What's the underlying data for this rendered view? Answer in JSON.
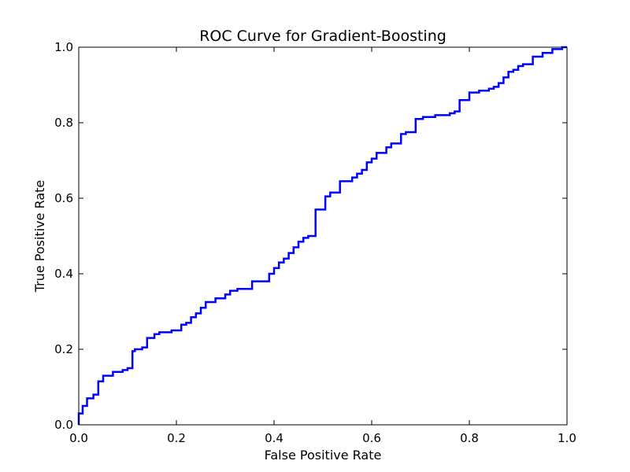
{
  "chart_data": {
    "type": "line",
    "title": "ROC Curve for Gradient-Boosting",
    "xlabel": "False Positive Rate",
    "ylabel": "True Positive Rate",
    "xlim": [
      0.0,
      1.0
    ],
    "ylim": [
      0.0,
      1.0
    ],
    "xticks": [
      "0.0",
      "0.2",
      "0.4",
      "0.6",
      "0.8",
      "1.0"
    ],
    "yticks": [
      "0.0",
      "0.2",
      "0.4",
      "0.6",
      "0.8",
      "1.0"
    ],
    "grid": false,
    "series_color": "#0000ff",
    "series": [
      {
        "x": [
          0.0,
          0.0,
          0.008,
          0.008,
          0.017,
          0.017,
          0.03,
          0.03,
          0.04,
          0.04,
          0.05,
          0.05,
          0.07,
          0.07,
          0.09,
          0.09,
          0.1,
          0.1,
          0.11,
          0.11,
          0.115,
          0.115,
          0.13,
          0.13,
          0.14,
          0.14,
          0.155,
          0.155,
          0.165,
          0.165,
          0.19,
          0.19,
          0.21,
          0.21,
          0.22,
          0.22,
          0.23,
          0.23,
          0.24,
          0.24,
          0.25,
          0.25,
          0.26,
          0.26,
          0.28,
          0.28,
          0.3,
          0.3,
          0.31,
          0.31,
          0.325,
          0.325,
          0.355,
          0.355,
          0.39,
          0.39,
          0.4,
          0.4,
          0.41,
          0.41,
          0.42,
          0.42,
          0.43,
          0.43,
          0.44,
          0.44,
          0.45,
          0.45,
          0.46,
          0.46,
          0.47,
          0.47,
          0.485,
          0.485,
          0.505,
          0.505,
          0.515,
          0.515,
          0.535,
          0.535,
          0.56,
          0.56,
          0.57,
          0.57,
          0.58,
          0.58,
          0.59,
          0.59,
          0.6,
          0.6,
          0.61,
          0.61,
          0.63,
          0.63,
          0.64,
          0.64,
          0.66,
          0.66,
          0.67,
          0.67,
          0.69,
          0.69,
          0.705,
          0.705,
          0.73,
          0.73,
          0.76,
          0.76,
          0.77,
          0.77,
          0.78,
          0.78,
          0.8,
          0.8,
          0.82,
          0.82,
          0.84,
          0.84,
          0.85,
          0.85,
          0.86,
          0.86,
          0.87,
          0.87,
          0.88,
          0.88,
          0.89,
          0.89,
          0.9,
          0.9,
          0.91,
          0.91,
          0.93,
          0.93,
          0.95,
          0.95,
          0.97,
          0.97,
          0.99,
          0.99,
          1.0
        ],
        "y": [
          0.0,
          0.03,
          0.03,
          0.05,
          0.05,
          0.07,
          0.07,
          0.08,
          0.08,
          0.115,
          0.115,
          0.13,
          0.13,
          0.14,
          0.14,
          0.145,
          0.145,
          0.15,
          0.15,
          0.195,
          0.195,
          0.2,
          0.2,
          0.205,
          0.205,
          0.23,
          0.23,
          0.24,
          0.24,
          0.245,
          0.245,
          0.25,
          0.25,
          0.265,
          0.265,
          0.27,
          0.27,
          0.285,
          0.285,
          0.295,
          0.295,
          0.31,
          0.31,
          0.325,
          0.325,
          0.335,
          0.335,
          0.345,
          0.345,
          0.355,
          0.355,
          0.36,
          0.36,
          0.38,
          0.38,
          0.4,
          0.4,
          0.415,
          0.415,
          0.43,
          0.43,
          0.44,
          0.44,
          0.455,
          0.455,
          0.47,
          0.47,
          0.485,
          0.485,
          0.495,
          0.495,
          0.5,
          0.5,
          0.57,
          0.57,
          0.605,
          0.605,
          0.615,
          0.615,
          0.645,
          0.645,
          0.655,
          0.655,
          0.665,
          0.665,
          0.675,
          0.675,
          0.695,
          0.695,
          0.705,
          0.705,
          0.72,
          0.72,
          0.735,
          0.735,
          0.745,
          0.745,
          0.77,
          0.77,
          0.775,
          0.775,
          0.81,
          0.81,
          0.815,
          0.815,
          0.82,
          0.82,
          0.825,
          0.825,
          0.83,
          0.83,
          0.86,
          0.86,
          0.88,
          0.88,
          0.885,
          0.885,
          0.89,
          0.89,
          0.895,
          0.895,
          0.905,
          0.905,
          0.92,
          0.92,
          0.935,
          0.935,
          0.94,
          0.94,
          0.95,
          0.95,
          0.955,
          0.955,
          0.975,
          0.975,
          0.985,
          0.985,
          0.995,
          0.995,
          1.0,
          1.0
        ]
      }
    ]
  }
}
